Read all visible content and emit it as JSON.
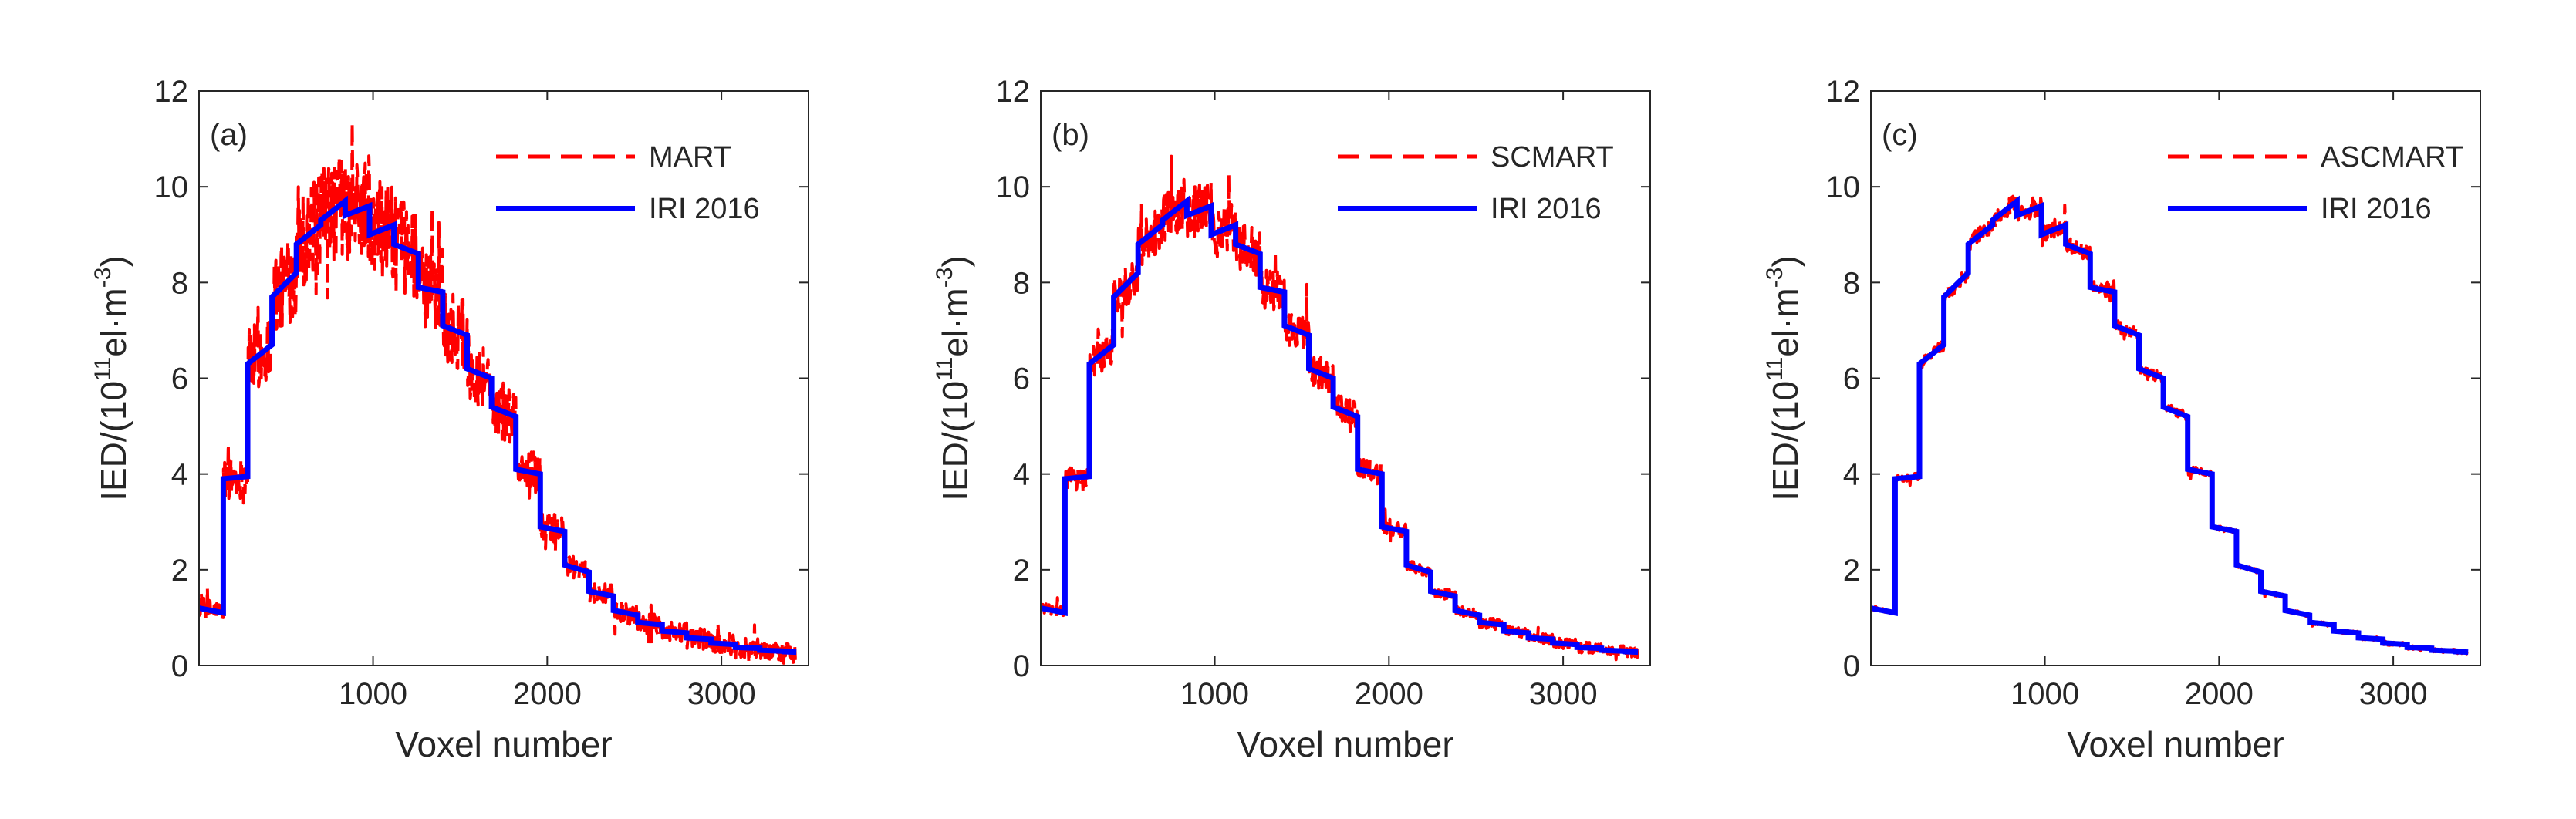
{
  "colors": {
    "reconstruction": "#ff0000",
    "reference": "#0000ff",
    "axis": "#262626"
  },
  "chart_data": [
    {
      "type": "line",
      "panel_label": "(a)",
      "xlabel": "Voxel number",
      "ylabel_main": "IED/(10",
      "ylabel_exp1": "11",
      "ylabel_mid": "el·m",
      "ylabel_exp2": "-3",
      "ylabel_end": ")",
      "xlim": [
        1,
        3500
      ],
      "ylim": [
        0,
        12
      ],
      "xticks": [
        "1000",
        "2000",
        "3000"
      ],
      "yticks": [
        "0",
        "2",
        "4",
        "6",
        "8",
        "10",
        "12"
      ],
      "noise_amplitude": 0.9,
      "series": [
        {
          "name": "MART",
          "style": "dashed",
          "color": "#ff0000"
        },
        {
          "name": "IRI 2016",
          "style": "solid",
          "color": "#0000ff"
        }
      ]
    },
    {
      "type": "line",
      "panel_label": "(b)",
      "xlabel": "Voxel number",
      "ylabel_main": "IED/(10",
      "ylabel_exp1": "11",
      "ylabel_mid": "el·m",
      "ylabel_exp2": "-3",
      "ylabel_end": ")",
      "xlim": [
        1,
        3500
      ],
      "ylim": [
        0,
        12
      ],
      "xticks": [
        "1000",
        "2000",
        "3000"
      ],
      "yticks": [
        "0",
        "2",
        "4",
        "6",
        "8",
        "10",
        "12"
      ],
      "noise_amplitude": 0.45,
      "series": [
        {
          "name": "SCMART",
          "style": "dashed",
          "color": "#ff0000"
        },
        {
          "name": "IRI 2016",
          "style": "solid",
          "color": "#0000ff"
        }
      ]
    },
    {
      "type": "line",
      "panel_label": "(c)",
      "xlabel": "Voxel number",
      "ylabel_main": "IED/(10",
      "ylabel_exp1": "11",
      "ylabel_mid": "el·m",
      "ylabel_exp2": "-3",
      "ylabel_end": ")",
      "xlim": [
        1,
        3500
      ],
      "ylim": [
        0,
        12
      ],
      "xticks": [
        "1000",
        "2000",
        "3000"
      ],
      "yticks": [
        "0",
        "2",
        "4",
        "6",
        "8",
        "10",
        "12"
      ],
      "noise_amplitude": 0.15,
      "series": [
        {
          "name": "ASCMART",
          "style": "dashed",
          "color": "#ff0000"
        },
        {
          "name": "IRI 2016",
          "style": "solid",
          "color": "#0000ff"
        }
      ]
    }
  ],
  "reference_profile": {
    "description_units": "voxel number vs IED (1e11 el/m^3)",
    "levels": [
      {
        "x_start": 1,
        "x_end": 140,
        "y_start": 1.2,
        "y_end": 1.1
      },
      {
        "x_start": 140,
        "x_end": 280,
        "y_start": 3.9,
        "y_end": 3.95
      },
      {
        "x_start": 280,
        "x_end": 420,
        "y_start": 6.3,
        "y_end": 6.7
      },
      {
        "x_start": 420,
        "x_end": 560,
        "y_start": 7.7,
        "y_end": 8.2
      },
      {
        "x_start": 560,
        "x_end": 700,
        "y_start": 8.8,
        "y_end": 9.2
      },
      {
        "x_start": 700,
        "x_end": 840,
        "y_start": 9.3,
        "y_end": 9.7
      },
      {
        "x_start": 840,
        "x_end": 980,
        "y_start": 9.4,
        "y_end": 9.6
      },
      {
        "x_start": 980,
        "x_end": 1120,
        "y_start": 9.0,
        "y_end": 9.2
      },
      {
        "x_start": 1120,
        "x_end": 1260,
        "y_start": 8.8,
        "y_end": 8.6
      },
      {
        "x_start": 1260,
        "x_end": 1400,
        "y_start": 7.9,
        "y_end": 7.8
      },
      {
        "x_start": 1400,
        "x_end": 1540,
        "y_start": 7.1,
        "y_end": 6.9
      },
      {
        "x_start": 1540,
        "x_end": 1680,
        "y_start": 6.2,
        "y_end": 6.0
      },
      {
        "x_start": 1680,
        "x_end": 1820,
        "y_start": 5.4,
        "y_end": 5.2
      },
      {
        "x_start": 1820,
        "x_end": 1960,
        "y_start": 4.1,
        "y_end": 4.0
      },
      {
        "x_start": 1960,
        "x_end": 2100,
        "y_start": 2.9,
        "y_end": 2.8
      },
      {
        "x_start": 2100,
        "x_end": 2240,
        "y_start": 2.1,
        "y_end": 1.95
      },
      {
        "x_start": 2240,
        "x_end": 2380,
        "y_start": 1.55,
        "y_end": 1.45
      },
      {
        "x_start": 2380,
        "x_end": 2520,
        "y_start": 1.15,
        "y_end": 1.05
      },
      {
        "x_start": 2520,
        "x_end": 2660,
        "y_start": 0.9,
        "y_end": 0.85
      },
      {
        "x_start": 2660,
        "x_end": 2800,
        "y_start": 0.72,
        "y_end": 0.68
      },
      {
        "x_start": 2800,
        "x_end": 2940,
        "y_start": 0.58,
        "y_end": 0.55
      },
      {
        "x_start": 2940,
        "x_end": 3080,
        "y_start": 0.47,
        "y_end": 0.44
      },
      {
        "x_start": 3080,
        "x_end": 3220,
        "y_start": 0.38,
        "y_end": 0.36
      },
      {
        "x_start": 3220,
        "x_end": 3360,
        "y_start": 0.32,
        "y_end": 0.3
      },
      {
        "x_start": 3360,
        "x_end": 3430,
        "y_start": 0.29,
        "y_end": 0.28
      }
    ]
  }
}
